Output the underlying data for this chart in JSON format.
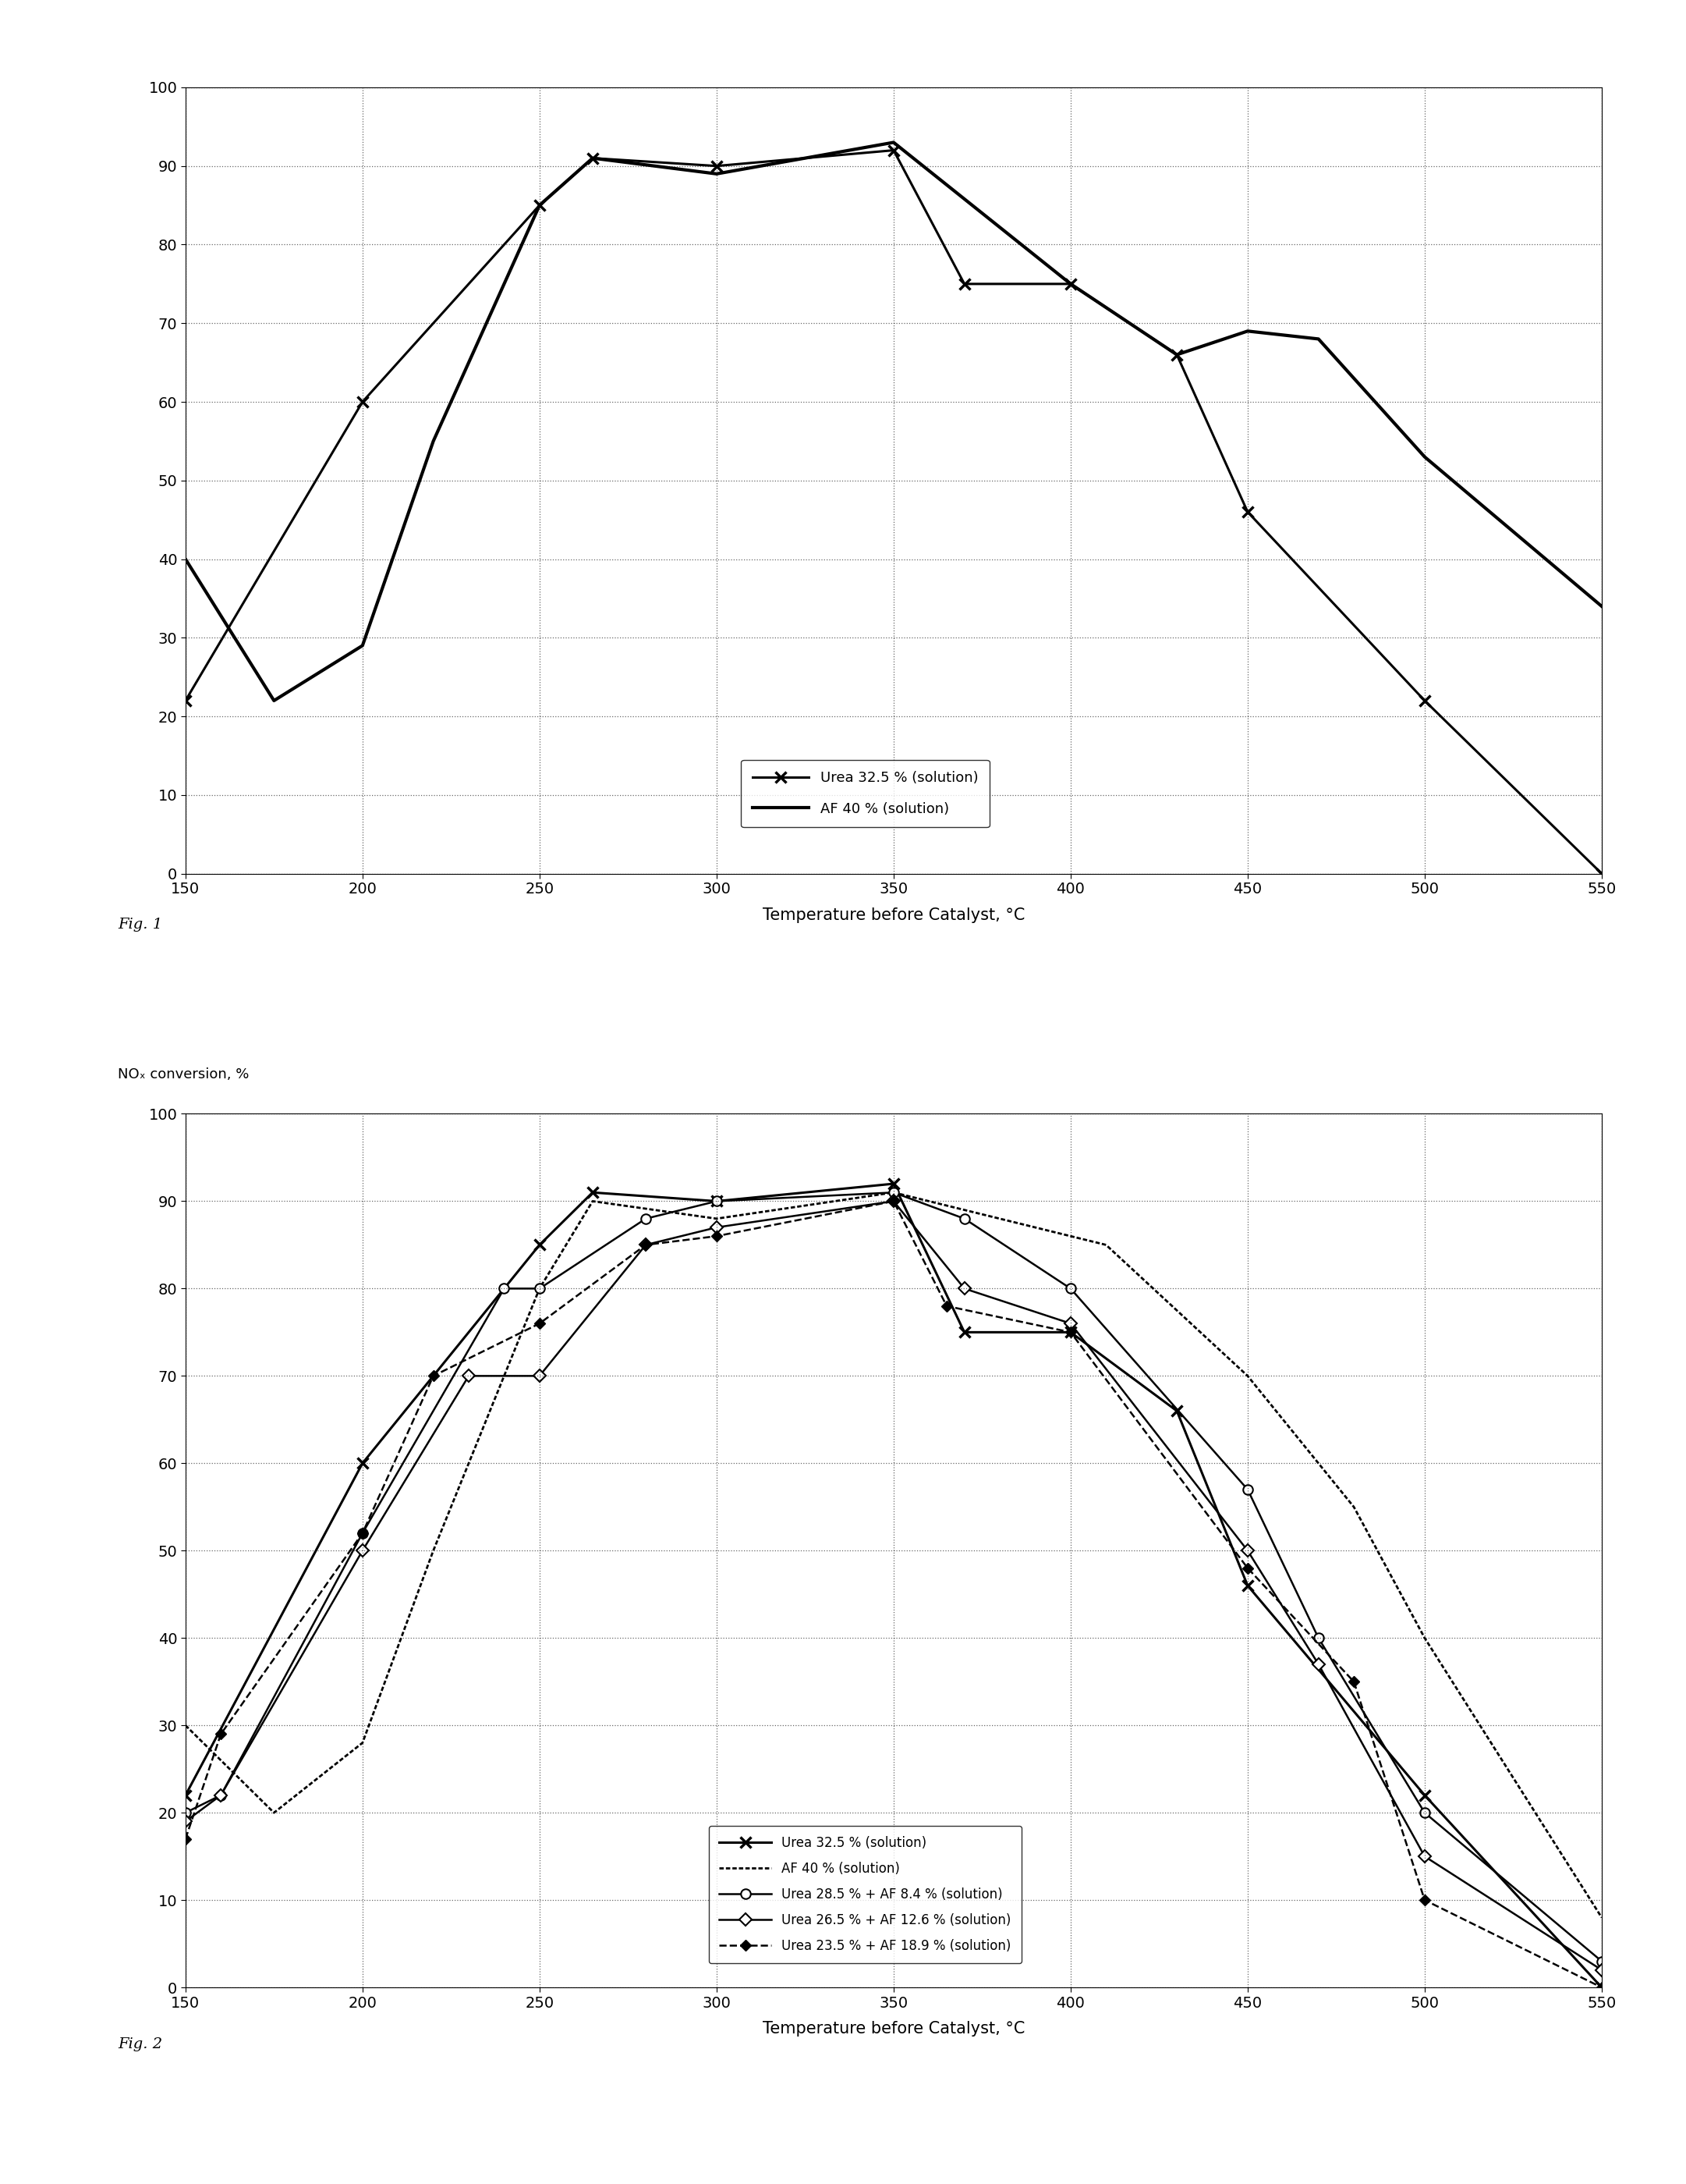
{
  "fig1": {
    "urea_x": [
      150,
      200,
      250,
      265,
      300,
      350,
      370,
      400,
      430,
      450,
      500,
      550
    ],
    "urea_y": [
      22,
      60,
      85,
      91,
      90,
      92,
      75,
      75,
      66,
      46,
      22,
      0
    ],
    "af_x": [
      150,
      175,
      200,
      220,
      250,
      265,
      300,
      350,
      400,
      430,
      450,
      470,
      500,
      550
    ],
    "af_y": [
      40,
      22,
      29,
      55,
      85,
      91,
      89,
      93,
      75,
      66,
      69,
      68,
      53,
      34
    ],
    "xlabel": "Temperature before Catalyst, °C",
    "fig_label": "Fig. 1",
    "legend_urea": "Urea 32.5 % (solution)",
    "legend_af": "AF 40 % (solution)",
    "xlim": [
      150,
      550
    ],
    "ylim": [
      0,
      100
    ],
    "yticks": [
      0,
      10,
      20,
      30,
      40,
      50,
      60,
      70,
      80,
      90,
      100
    ],
    "xticks": [
      150,
      200,
      250,
      300,
      350,
      400,
      450,
      500,
      550
    ]
  },
  "fig2": {
    "urea_x": [
      150,
      200,
      250,
      265,
      300,
      350,
      370,
      400,
      430,
      450,
      500,
      550
    ],
    "urea_y": [
      22,
      60,
      85,
      91,
      90,
      92,
      75,
      75,
      66,
      46,
      22,
      0
    ],
    "af_x": [
      150,
      175,
      200,
      220,
      250,
      265,
      300,
      350,
      380,
      410,
      450,
      480,
      500,
      550
    ],
    "af_y": [
      30,
      20,
      28,
      50,
      80,
      90,
      88,
      91,
      88,
      85,
      70,
      55,
      40,
      8
    ],
    "mix1_x": [
      150,
      160,
      200,
      240,
      250,
      280,
      300,
      350,
      370,
      400,
      450,
      470,
      500,
      550
    ],
    "mix1_y": [
      20,
      22,
      52,
      80,
      80,
      88,
      90,
      91,
      88,
      80,
      57,
      40,
      20,
      3
    ],
    "mix2_x": [
      150,
      160,
      200,
      230,
      250,
      280,
      300,
      350,
      370,
      400,
      450,
      470,
      500,
      550
    ],
    "mix2_y": [
      19,
      22,
      50,
      70,
      70,
      85,
      87,
      90,
      80,
      76,
      50,
      37,
      15,
      2
    ],
    "mix3_x": [
      150,
      160,
      200,
      220,
      250,
      280,
      300,
      350,
      365,
      400,
      450,
      480,
      500,
      550
    ],
    "mix3_y": [
      17,
      29,
      52,
      70,
      76,
      85,
      86,
      90,
      78,
      75,
      48,
      35,
      10,
      0
    ],
    "xlabel": "Temperature before Catalyst, °C",
    "ylabel": "NOₓ conversion, %",
    "fig_label": "Fig. 2",
    "legend_urea": "Urea 32.5 % (solution)",
    "legend_af": "AF 40 % (solution)",
    "legend_mix1": "Urea 28.5 % + AF 8.4 % (solution)",
    "legend_mix2": "Urea 26.5 % + AF 12.6 % (solution)",
    "legend_mix3": "Urea 23.5 % + AF 18.9 % (solution)",
    "xlim": [
      150,
      550
    ],
    "ylim": [
      0,
      100
    ],
    "yticks": [
      0,
      10,
      20,
      30,
      40,
      50,
      60,
      70,
      80,
      90,
      100
    ],
    "xticks": [
      150,
      200,
      250,
      300,
      350,
      400,
      450,
      500,
      550
    ]
  }
}
